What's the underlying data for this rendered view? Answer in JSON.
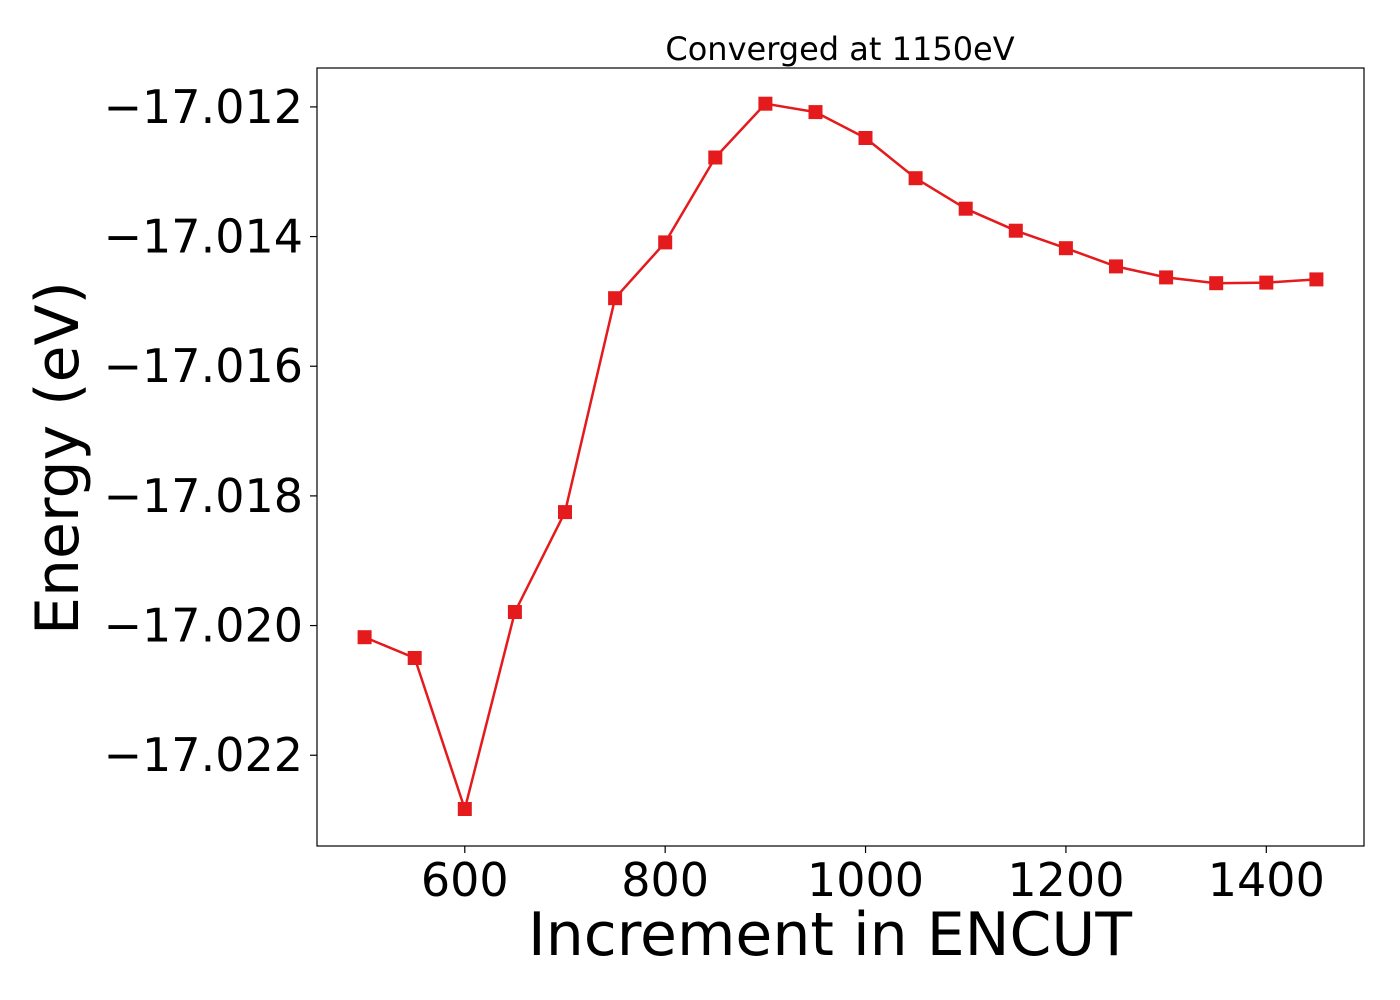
{
  "chart_data": {
    "type": "line",
    "title": "Converged at 1150eV",
    "xlabel": "Increment in ENCUT",
    "ylabel": "Energy (eV)",
    "xlim": [
      452.5,
      1497.5
    ],
    "ylim": [
      -17.0234,
      -17.0114
    ],
    "xticks": [
      600,
      800,
      1000,
      1200,
      1400
    ],
    "xtick_labels": [
      "600",
      "800",
      "1000",
      "1200",
      "1400"
    ],
    "yticks": [
      -17.012,
      -17.014,
      -17.016,
      -17.018,
      -17.02,
      -17.022
    ],
    "ytick_labels": [
      "−17.012",
      "−17.014",
      "−17.016",
      "−17.018",
      "−17.020",
      "−17.022"
    ],
    "grid": false,
    "legend": "none",
    "series": [
      {
        "color": "#e41a1c",
        "marker": "square",
        "x": [
          500,
          550,
          600,
          650,
          700,
          750,
          800,
          850,
          900,
          950,
          1000,
          1050,
          1100,
          1150,
          1200,
          1250,
          1300,
          1350,
          1400,
          1450
        ],
        "y": [
          -17.02018,
          -17.0205,
          -17.02283,
          -17.01979,
          -17.01825,
          -17.01495,
          -17.01409,
          -17.01278,
          -17.01195,
          -17.01208,
          -17.01248,
          -17.0131,
          -17.01357,
          -17.01391,
          -17.01418,
          -17.01446,
          -17.01463,
          -17.01472,
          -17.01471,
          -17.01466
        ]
      }
    ]
  }
}
